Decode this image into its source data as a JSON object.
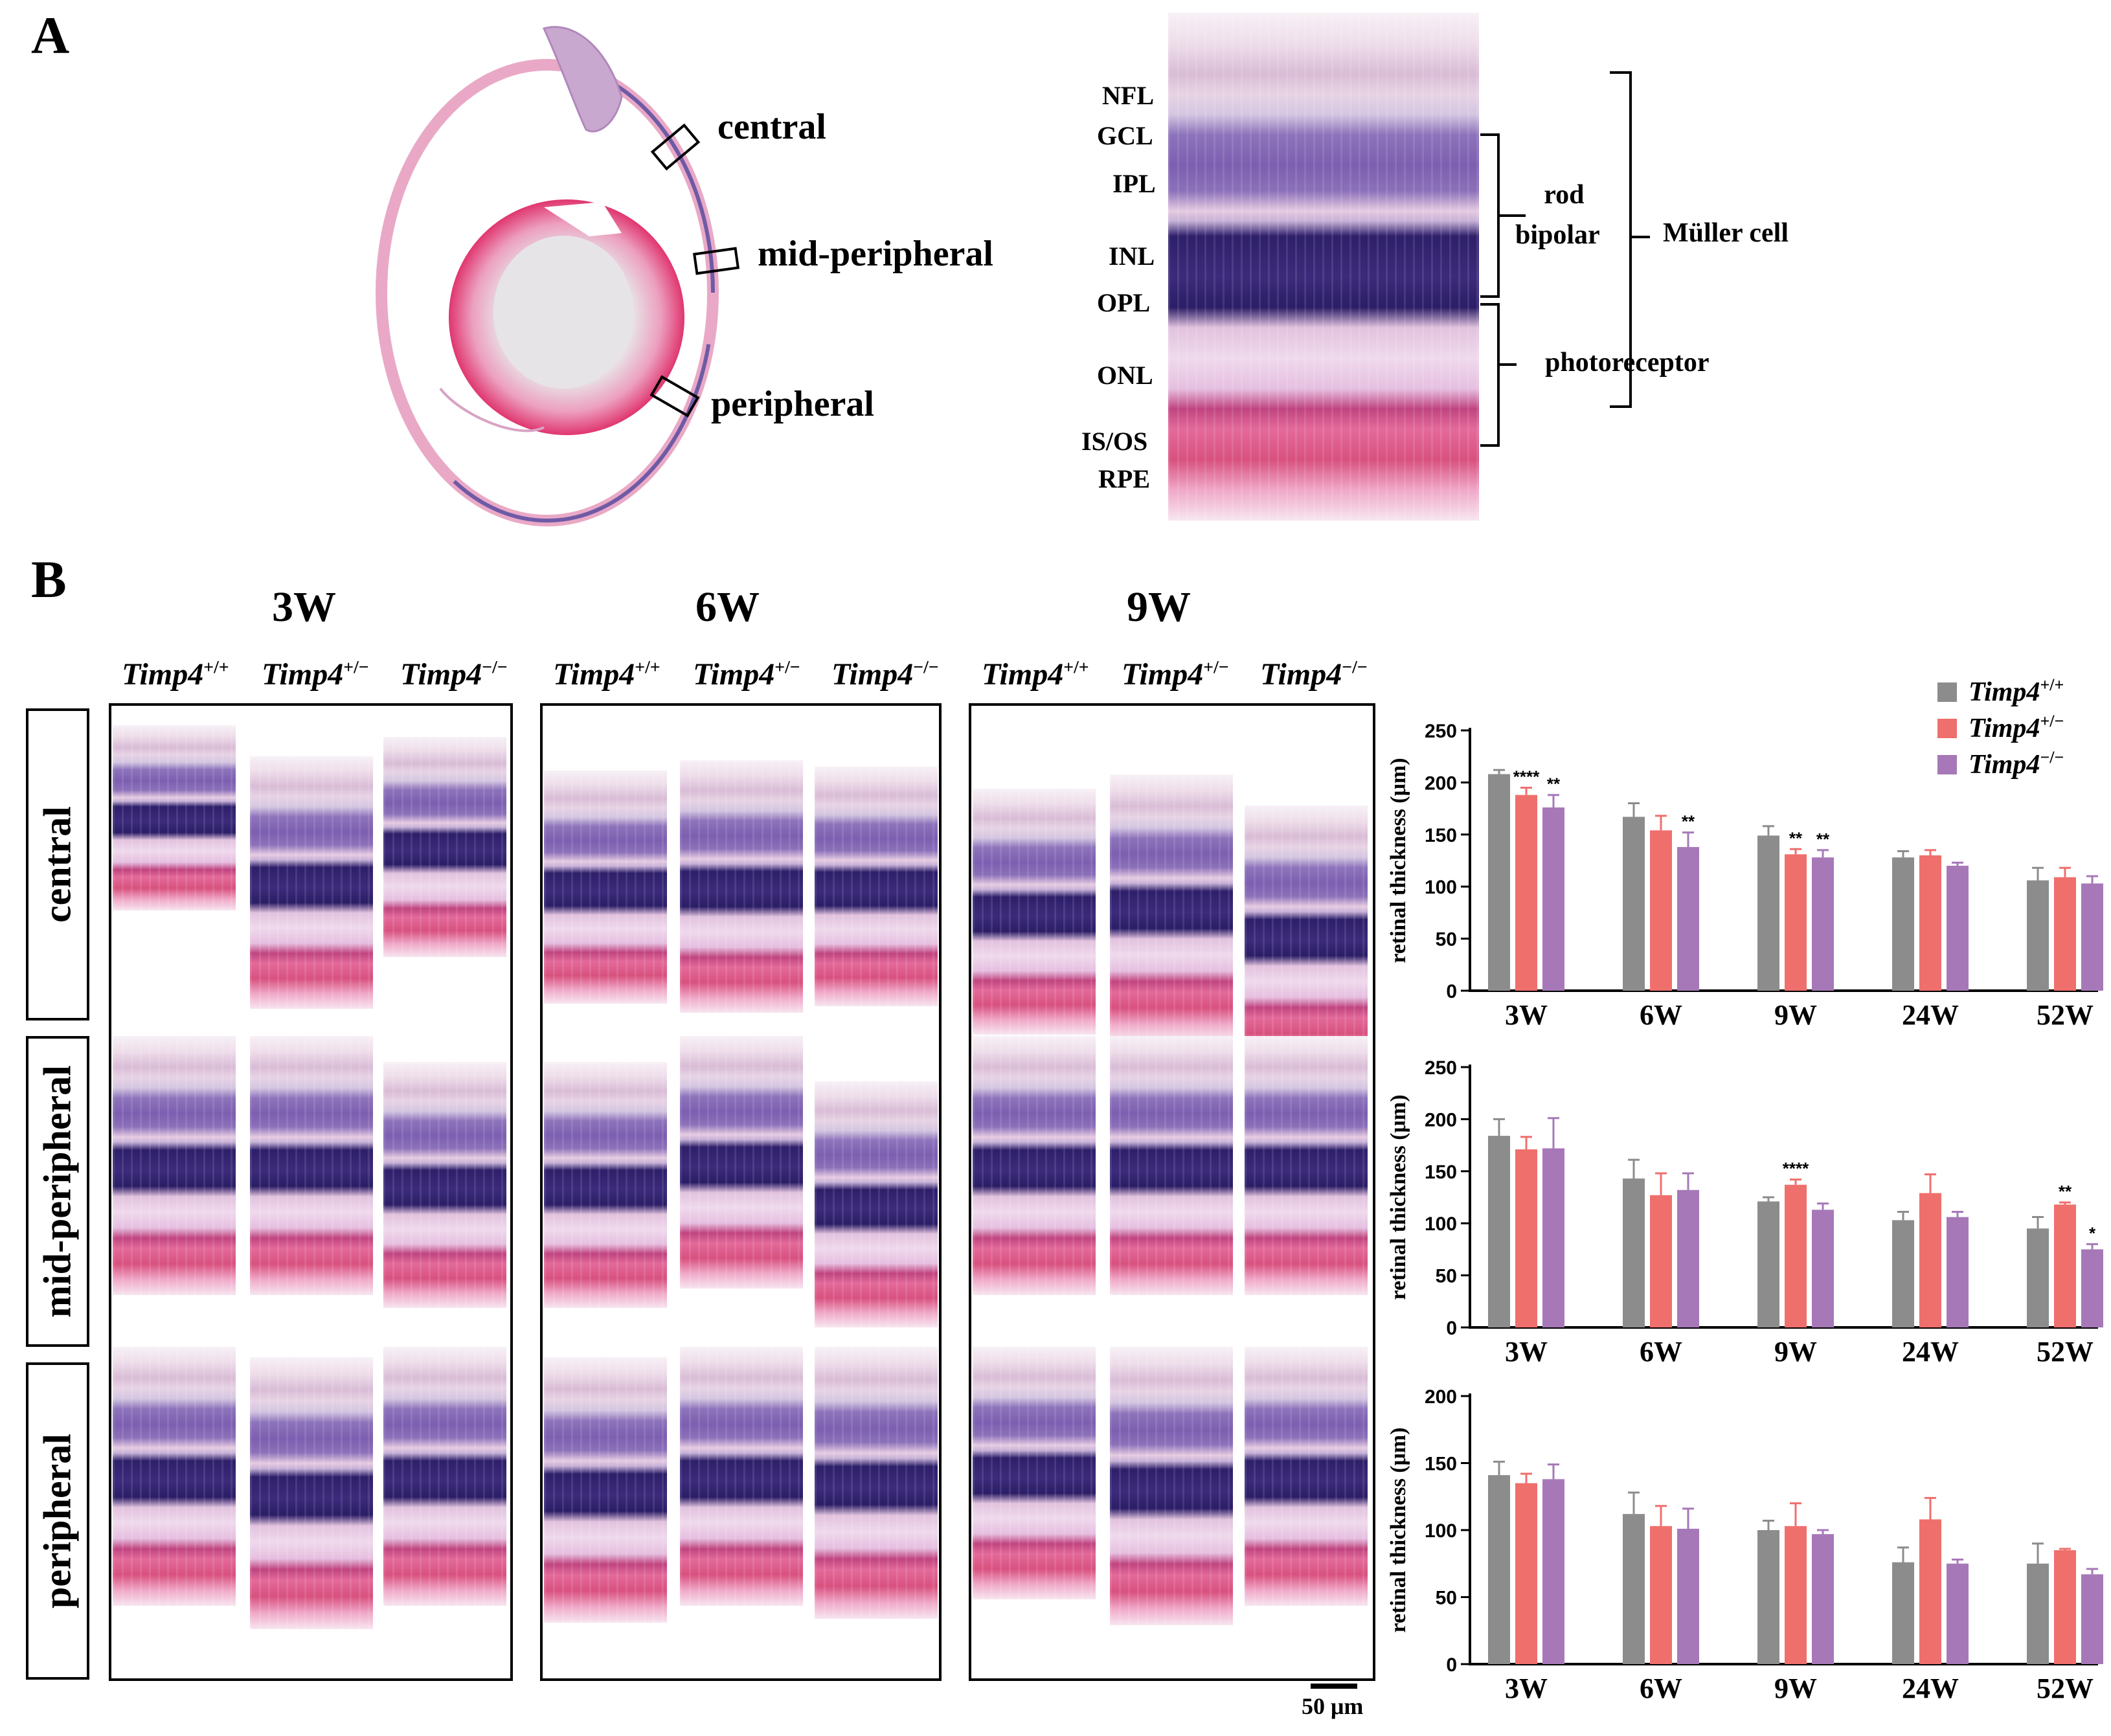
{
  "panel_a": {
    "letter": "A",
    "regions": [
      "central",
      "mid-peripheral",
      "peripheral"
    ],
    "layers": [
      "NFL",
      "GCL",
      "IPL",
      "INL",
      "OPL",
      "ONL",
      "IS/OS",
      "RPE"
    ],
    "cell_labels": {
      "rod_line1": "rod",
      "rod_line2": "bipolar",
      "photoreceptor": "photoreceptor",
      "muller": "Müller cell"
    }
  },
  "panel_b": {
    "letter": "B",
    "timepoints": [
      "3W",
      "6W",
      "9W"
    ],
    "genotype_base": "Timp4",
    "genotype_sups": [
      "+/+",
      "+/−",
      "−/−"
    ],
    "row_labels": [
      "central",
      "mid-peripheral",
      "peripheral"
    ],
    "scale_bar": "50 μm"
  },
  "colors": {
    "wt": "#8c8c8c",
    "het": "#ef6f6c",
    "ko": "#a678b8"
  },
  "chart_data": [
    {
      "type": "bar",
      "region": "central",
      "categories": [
        "3W",
        "6W",
        "9W",
        "24W",
        "52W"
      ],
      "ylabel": "retinal thickness (μm)",
      "ylim": [
        0,
        250
      ],
      "yticks": [
        "0",
        "50",
        "100",
        "150",
        "200",
        "250"
      ],
      "legend": {
        "position": "top-right",
        "base": "Timp4",
        "sups": [
          "+/+",
          "+/−",
          "−/−"
        ]
      },
      "series": [
        {
          "name": "Timp4+/+",
          "values": [
            208,
            167,
            149,
            128,
            106
          ],
          "errors": [
            4,
            13,
            9,
            6,
            12
          ],
          "sig": [
            "",
            "",
            "",
            "",
            ""
          ]
        },
        {
          "name": "Timp4+/−",
          "values": [
            188,
            154,
            131,
            130,
            109
          ],
          "errors": [
            7,
            14,
            5,
            5,
            9
          ],
          "sig": [
            "****",
            "",
            "**",
            "",
            ""
          ]
        },
        {
          "name": "Timp4−/−",
          "values": [
            176,
            138,
            128,
            120,
            103
          ],
          "errors": [
            12,
            14,
            7,
            3,
            7
          ],
          "sig": [
            "**",
            "**",
            "**",
            "",
            ""
          ]
        }
      ]
    },
    {
      "type": "bar",
      "region": "mid-peripheral",
      "categories": [
        "3W",
        "6W",
        "9W",
        "24W",
        "52W"
      ],
      "ylabel": "retinal thickness (μm)",
      "ylim": [
        0,
        250
      ],
      "yticks": [
        "0",
        "50",
        "100",
        "150",
        "200",
        "250"
      ],
      "series": [
        {
          "name": "Timp4+/+",
          "values": [
            184,
            143,
            121,
            103,
            95
          ],
          "errors": [
            16,
            18,
            4,
            8,
            11
          ],
          "sig": [
            "",
            "",
            "",
            "",
            ""
          ]
        },
        {
          "name": "Timp4+/−",
          "values": [
            171,
            127,
            137,
            129,
            118
          ],
          "errors": [
            12,
            21,
            5,
            18,
            2
          ],
          "sig": [
            "",
            "",
            "****",
            "",
            "**"
          ]
        },
        {
          "name": "Timp4−/−",
          "values": [
            172,
            132,
            113,
            106,
            75
          ],
          "errors": [
            29,
            16,
            6,
            5,
            5
          ],
          "sig": [
            "",
            "",
            "",
            "",
            "*"
          ]
        }
      ]
    },
    {
      "type": "bar",
      "region": "peripheral",
      "categories": [
        "3W",
        "6W",
        "9W",
        "24W",
        "52W"
      ],
      "ylabel": "retinal thickness (μm)",
      "ylim": [
        0,
        200
      ],
      "yticks": [
        "0",
        "50",
        "100",
        "150",
        "200"
      ],
      "series": [
        {
          "name": "Timp4+/+",
          "values": [
            141,
            112,
            100,
            76,
            75
          ],
          "errors": [
            10,
            16,
            7,
            11,
            15
          ],
          "sig": [
            "",
            "",
            "",
            "",
            ""
          ]
        },
        {
          "name": "Timp4+/−",
          "values": [
            135,
            103,
            103,
            108,
            85
          ],
          "errors": [
            7,
            15,
            17,
            16,
            1
          ],
          "sig": [
            "",
            "",
            "",
            "",
            ""
          ]
        },
        {
          "name": "Timp4−/−",
          "values": [
            138,
            101,
            97,
            75,
            67
          ],
          "errors": [
            11,
            15,
            3,
            3,
            4
          ],
          "sig": [
            "",
            "",
            "",
            "",
            ""
          ]
        }
      ]
    }
  ]
}
